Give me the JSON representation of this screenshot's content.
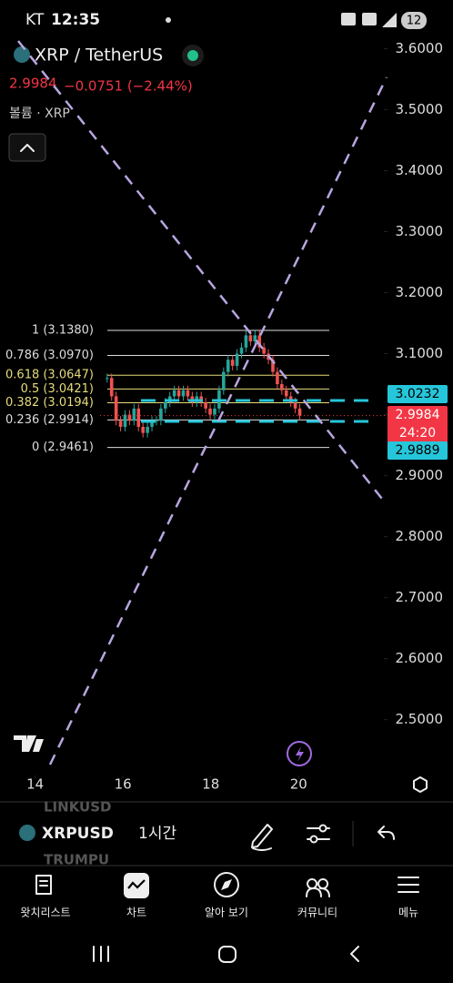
{
  "status_bar": {
    "carrier": "KT",
    "time": "12:35",
    "battery": "12"
  },
  "header": {
    "symbol": "XRP / TetherUS",
    "price": "2.9984",
    "change": "−0.0751 (−2.44%)",
    "volume_label": "볼륨 · XRP"
  },
  "chart_data": {
    "type": "candlestick",
    "x": [
      15.64,
      15.742,
      15.844,
      15.946,
      16.048,
      16.15,
      16.252,
      16.354,
      16.456,
      16.558,
      16.66,
      16.762,
      16.864,
      16.966,
      17.068,
      17.17,
      17.272,
      17.374,
      17.476,
      17.578,
      17.68,
      17.782,
      17.884,
      17.986,
      18.088,
      18.19,
      18.292,
      18.394,
      18.496,
      18.598,
      18.7,
      18.802,
      18.904,
      19.006,
      19.108,
      19.21,
      19.312,
      19.414,
      19.516,
      19.618,
      19.72,
      19.822,
      19.924,
      20.026
    ],
    "values": [
      3.06,
      3.03,
      2.99,
      2.98,
      3.0,
      2.99,
      3.01,
      2.98,
      2.97,
      2.98,
      2.99,
      2.99,
      3.01,
      3.02,
      3.03,
      3.04,
      3.03,
      3.04,
      3.03,
      3.02,
      3.03,
      3.02,
      3.01,
      3.0,
      3.01,
      3.04,
      3.07,
      3.09,
      3.08,
      3.1,
      3.11,
      3.13,
      3.12,
      3.13,
      3.11,
      3.1,
      3.09,
      3.07,
      3.05,
      3.04,
      3.03,
      3.02,
      3.01,
      2.9984
    ],
    "up_color": "#26a69a",
    "down_color": "#ef5350",
    "xlim": [
      13.2,
      21.9
    ],
    "xticks": [
      14,
      16,
      18,
      20
    ],
    "ylim": [
      2.41,
      3.62
    ],
    "yticks": [
      {
        "value": 2.5,
        "label": "2.5000"
      },
      {
        "value": 2.6,
        "label": "2.6000"
      },
      {
        "value": 2.7,
        "label": "2.7000"
      },
      {
        "value": 2.8,
        "label": "2.8000"
      },
      {
        "value": 2.9,
        "label": "2.9000"
      },
      {
        "value": 3.0,
        "label": "3.0000"
      },
      {
        "value": 3.1,
        "label": "3.1000"
      },
      {
        "value": 3.2,
        "label": "3.2000"
      },
      {
        "value": 3.3,
        "label": "3.3000"
      },
      {
        "value": 3.4,
        "label": "3.4000"
      },
      {
        "value": 3.5,
        "label": "3.5000"
      },
      {
        "value": 3.6,
        "label": "3.6000"
      }
    ],
    "fib_levels": [
      {
        "label": "1 (3.1380)",
        "value": 3.138,
        "color": "#dddddd"
      },
      {
        "label": "0.786 (3.0970)",
        "value": 3.097,
        "color": "#dddddd"
      },
      {
        "label": "0.618 (3.0647)",
        "value": 3.0647,
        "color": "#e6dc7a"
      },
      {
        "label": "0.5 (3.0421)",
        "value": 3.0421,
        "color": "#e6dc7a"
      },
      {
        "label": "0.382 (3.0194)",
        "value": 3.0194,
        "color": "#e6dc7a"
      },
      {
        "label": "0.236 (2.9914)",
        "value": 2.9914,
        "color": "#dddddd"
      },
      {
        "label": "0 (2.9461)",
        "value": 2.9461,
        "color": "#dddddd"
      }
    ],
    "price_tags": [
      {
        "value": 3.0232,
        "color": "#26c6da"
      },
      {
        "value": 2.9984,
        "timer": "24:20",
        "color": "#f23645"
      },
      {
        "value": 2.9889,
        "color": "#26c6da"
      }
    ]
  },
  "toolbar": {
    "symbol": "XRPUSD",
    "interval": "1시간",
    "ghost_above": "LINKUSD",
    "ghost_below": "TRUMPU"
  },
  "nav": {
    "items": [
      "왓치리스트",
      "차트",
      "알아 보기",
      "커뮤니티",
      "메뉴"
    ]
  }
}
